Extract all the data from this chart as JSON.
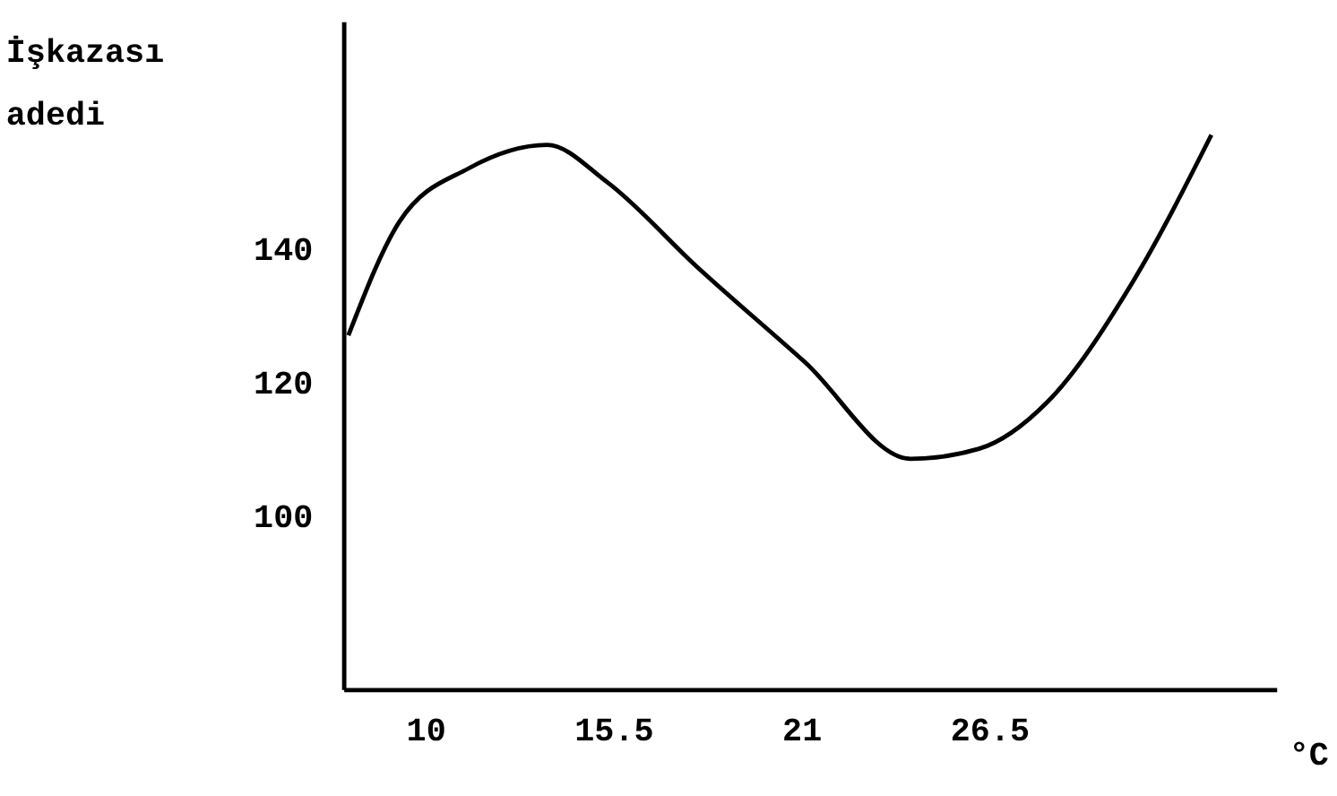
{
  "chart_data": {
    "type": "line",
    "xlabel": "°C",
    "ylabel": "İşkazası adedi",
    "x": [
      7.75,
      9.24,
      11.27,
      13.56,
      15.3,
      18.0,
      21.1,
      24.2,
      26.2,
      28.2,
      30.7,
      33.0
    ],
    "series": [
      {
        "color": "#000000",
        "values": [
          127,
          144,
          152,
          155.5,
          150,
          137,
          123,
          108.5,
          110,
          117,
          135,
          157
        ]
      }
    ],
    "xlim": [
      7.6,
      34.9
    ],
    "ylim": [
      74,
      174
    ],
    "xticks": [
      10,
      15.5,
      21,
      26.5
    ],
    "yticks": [
      100,
      120,
      140
    ],
    "grid": false,
    "legend": false,
    "marker": "none",
    "line_style": "solid"
  }
}
